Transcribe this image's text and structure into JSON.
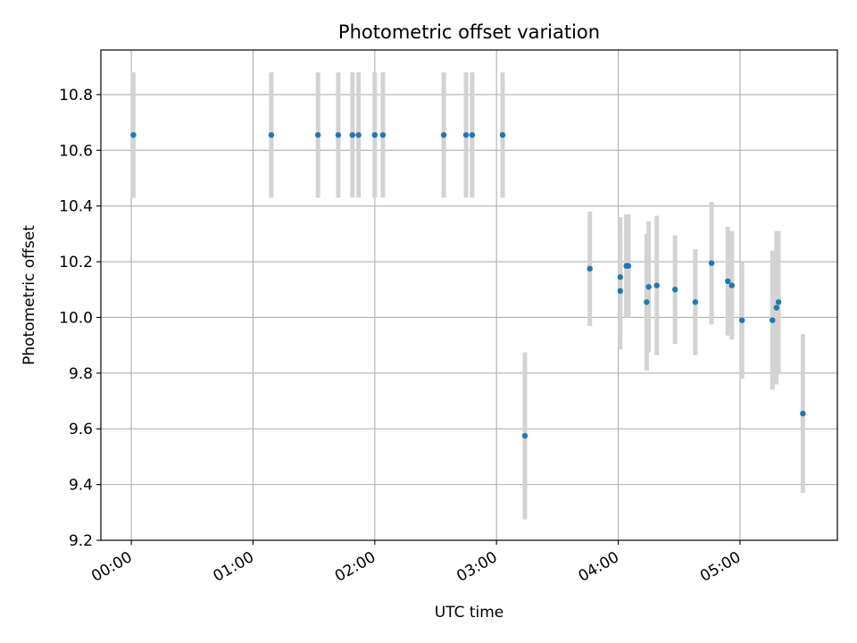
{
  "chart_data": {
    "type": "scatter",
    "title": "Photometric offset variation",
    "xlabel": "UTC time",
    "ylabel": "Photometric offset",
    "x_tick_labels": [
      "00:00",
      "01:00",
      "02:00",
      "03:00",
      "04:00",
      "05:00"
    ],
    "x_tick_hours": [
      0,
      1,
      2,
      3,
      4,
      5
    ],
    "y_tick_labels": [
      "9.2",
      "9.4",
      "9.6",
      "9.8",
      "10.0",
      "10.2",
      "10.4",
      "10.6",
      "10.8"
    ],
    "y_tick_values": [
      9.2,
      9.4,
      9.6,
      9.8,
      10.0,
      10.2,
      10.4,
      10.6,
      10.8
    ],
    "xlim": [
      "23:45",
      "05:48"
    ],
    "ylim": [
      9.2,
      10.96
    ],
    "grid": true,
    "marker_color": "#1f77b4",
    "errorbar_color": "#d3d3d3",
    "series": [
      {
        "points": [
          {
            "x": "00:01",
            "y": 10.655,
            "err": 0.225
          },
          {
            "x": "01:09",
            "y": 10.655,
            "err": 0.225
          },
          {
            "x": "01:32",
            "y": 10.655,
            "err": 0.225
          },
          {
            "x": "01:42",
            "y": 10.655,
            "err": 0.225
          },
          {
            "x": "01:49",
            "y": 10.655,
            "err": 0.225
          },
          {
            "x": "01:52",
            "y": 10.655,
            "err": 0.225
          },
          {
            "x": "02:00",
            "y": 10.655,
            "err": 0.225
          },
          {
            "x": "02:04",
            "y": 10.655,
            "err": 0.225
          },
          {
            "x": "02:34",
            "y": 10.655,
            "err": 0.225
          },
          {
            "x": "02:45",
            "y": 10.655,
            "err": 0.225
          },
          {
            "x": "02:48",
            "y": 10.655,
            "err": 0.225
          },
          {
            "x": "03:03",
            "y": 10.655,
            "err": 0.225
          },
          {
            "x": "03:14",
            "y": 9.575,
            "err": 0.3
          },
          {
            "x": "03:46",
            "y": 10.175,
            "err": 0.205
          },
          {
            "x": "04:01",
            "y": 10.145,
            "err": 0.215
          },
          {
            "x": "04:01",
            "y": 10.095,
            "err": 0.21
          },
          {
            "x": "04:04",
            "y": 10.185,
            "err": 0.185
          },
          {
            "x": "04:05",
            "y": 10.185,
            "err": 0.185
          },
          {
            "x": "04:14",
            "y": 10.055,
            "err": 0.245
          },
          {
            "x": "04:15",
            "y": 10.11,
            "err": 0.235
          },
          {
            "x": "04:19",
            "y": 10.115,
            "err": 0.25
          },
          {
            "x": "04:28",
            "y": 10.1,
            "err": 0.195
          },
          {
            "x": "04:38",
            "y": 10.055,
            "err": 0.19
          },
          {
            "x": "04:46",
            "y": 10.195,
            "err": 0.22
          },
          {
            "x": "04:54",
            "y": 10.13,
            "err": 0.195
          },
          {
            "x": "04:56",
            "y": 10.115,
            "err": 0.195
          },
          {
            "x": "05:01",
            "y": 9.99,
            "err": 0.21
          },
          {
            "x": "05:16",
            "y": 9.99,
            "err": 0.25
          },
          {
            "x": "05:18",
            "y": 10.035,
            "err": 0.275
          },
          {
            "x": "05:19",
            "y": 10.055,
            "err": 0.255
          },
          {
            "x": "05:31",
            "y": 9.655,
            "err": 0.285
          }
        ]
      }
    ]
  }
}
